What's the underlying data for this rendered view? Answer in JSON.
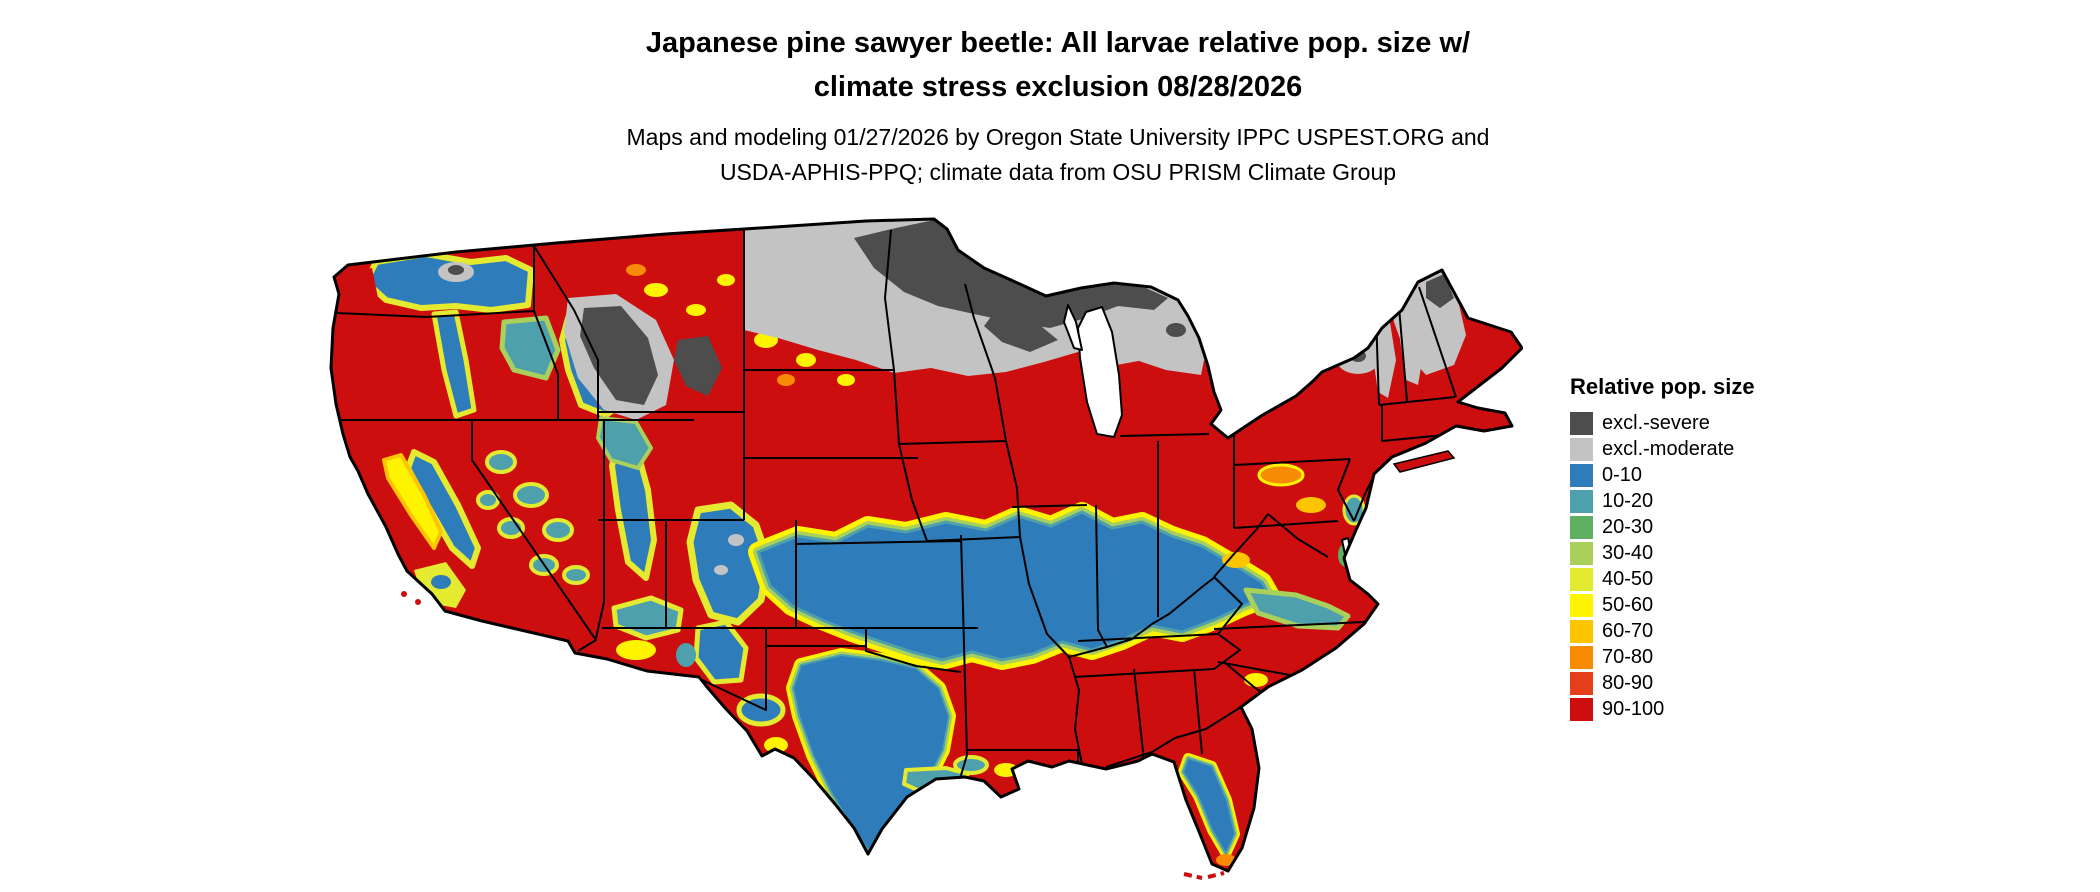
{
  "figure": {
    "title_line1": "Japanese pine sawyer beetle: All larvae relative pop. size w/",
    "title_line2": "climate stress exclusion 08/28/2026",
    "subtitle_line1": "Maps and modeling 01/27/2026 by Oregon State University IPPC USPEST.ORG and",
    "subtitle_line2": "USDA-APHIS-PPQ; climate data from OSU PRISM Climate Group"
  },
  "map": {
    "region": "Continental United States",
    "dominant_value_color": "#cd0e0e"
  },
  "legend": {
    "title": "Relative pop. size",
    "items": [
      {
        "label": "excl.-severe",
        "color": "#4d4d4d"
      },
      {
        "label": "excl.-moderate",
        "color": "#c3c3c3"
      },
      {
        "label": "0-10",
        "color": "#2f7cba"
      },
      {
        "label": "10-20",
        "color": "#4fa0ad"
      },
      {
        "label": "20-30",
        "color": "#5fae61"
      },
      {
        "label": "30-40",
        "color": "#a8d05a"
      },
      {
        "label": "40-50",
        "color": "#e3ea2f"
      },
      {
        "label": "50-60",
        "color": "#fef400"
      },
      {
        "label": "60-70",
        "color": "#fdc500"
      },
      {
        "label": "70-80",
        "color": "#f78b05"
      },
      {
        "label": "80-90",
        "color": "#e53e1b"
      },
      {
        "label": "90-100",
        "color": "#cd0e0e"
      }
    ]
  }
}
